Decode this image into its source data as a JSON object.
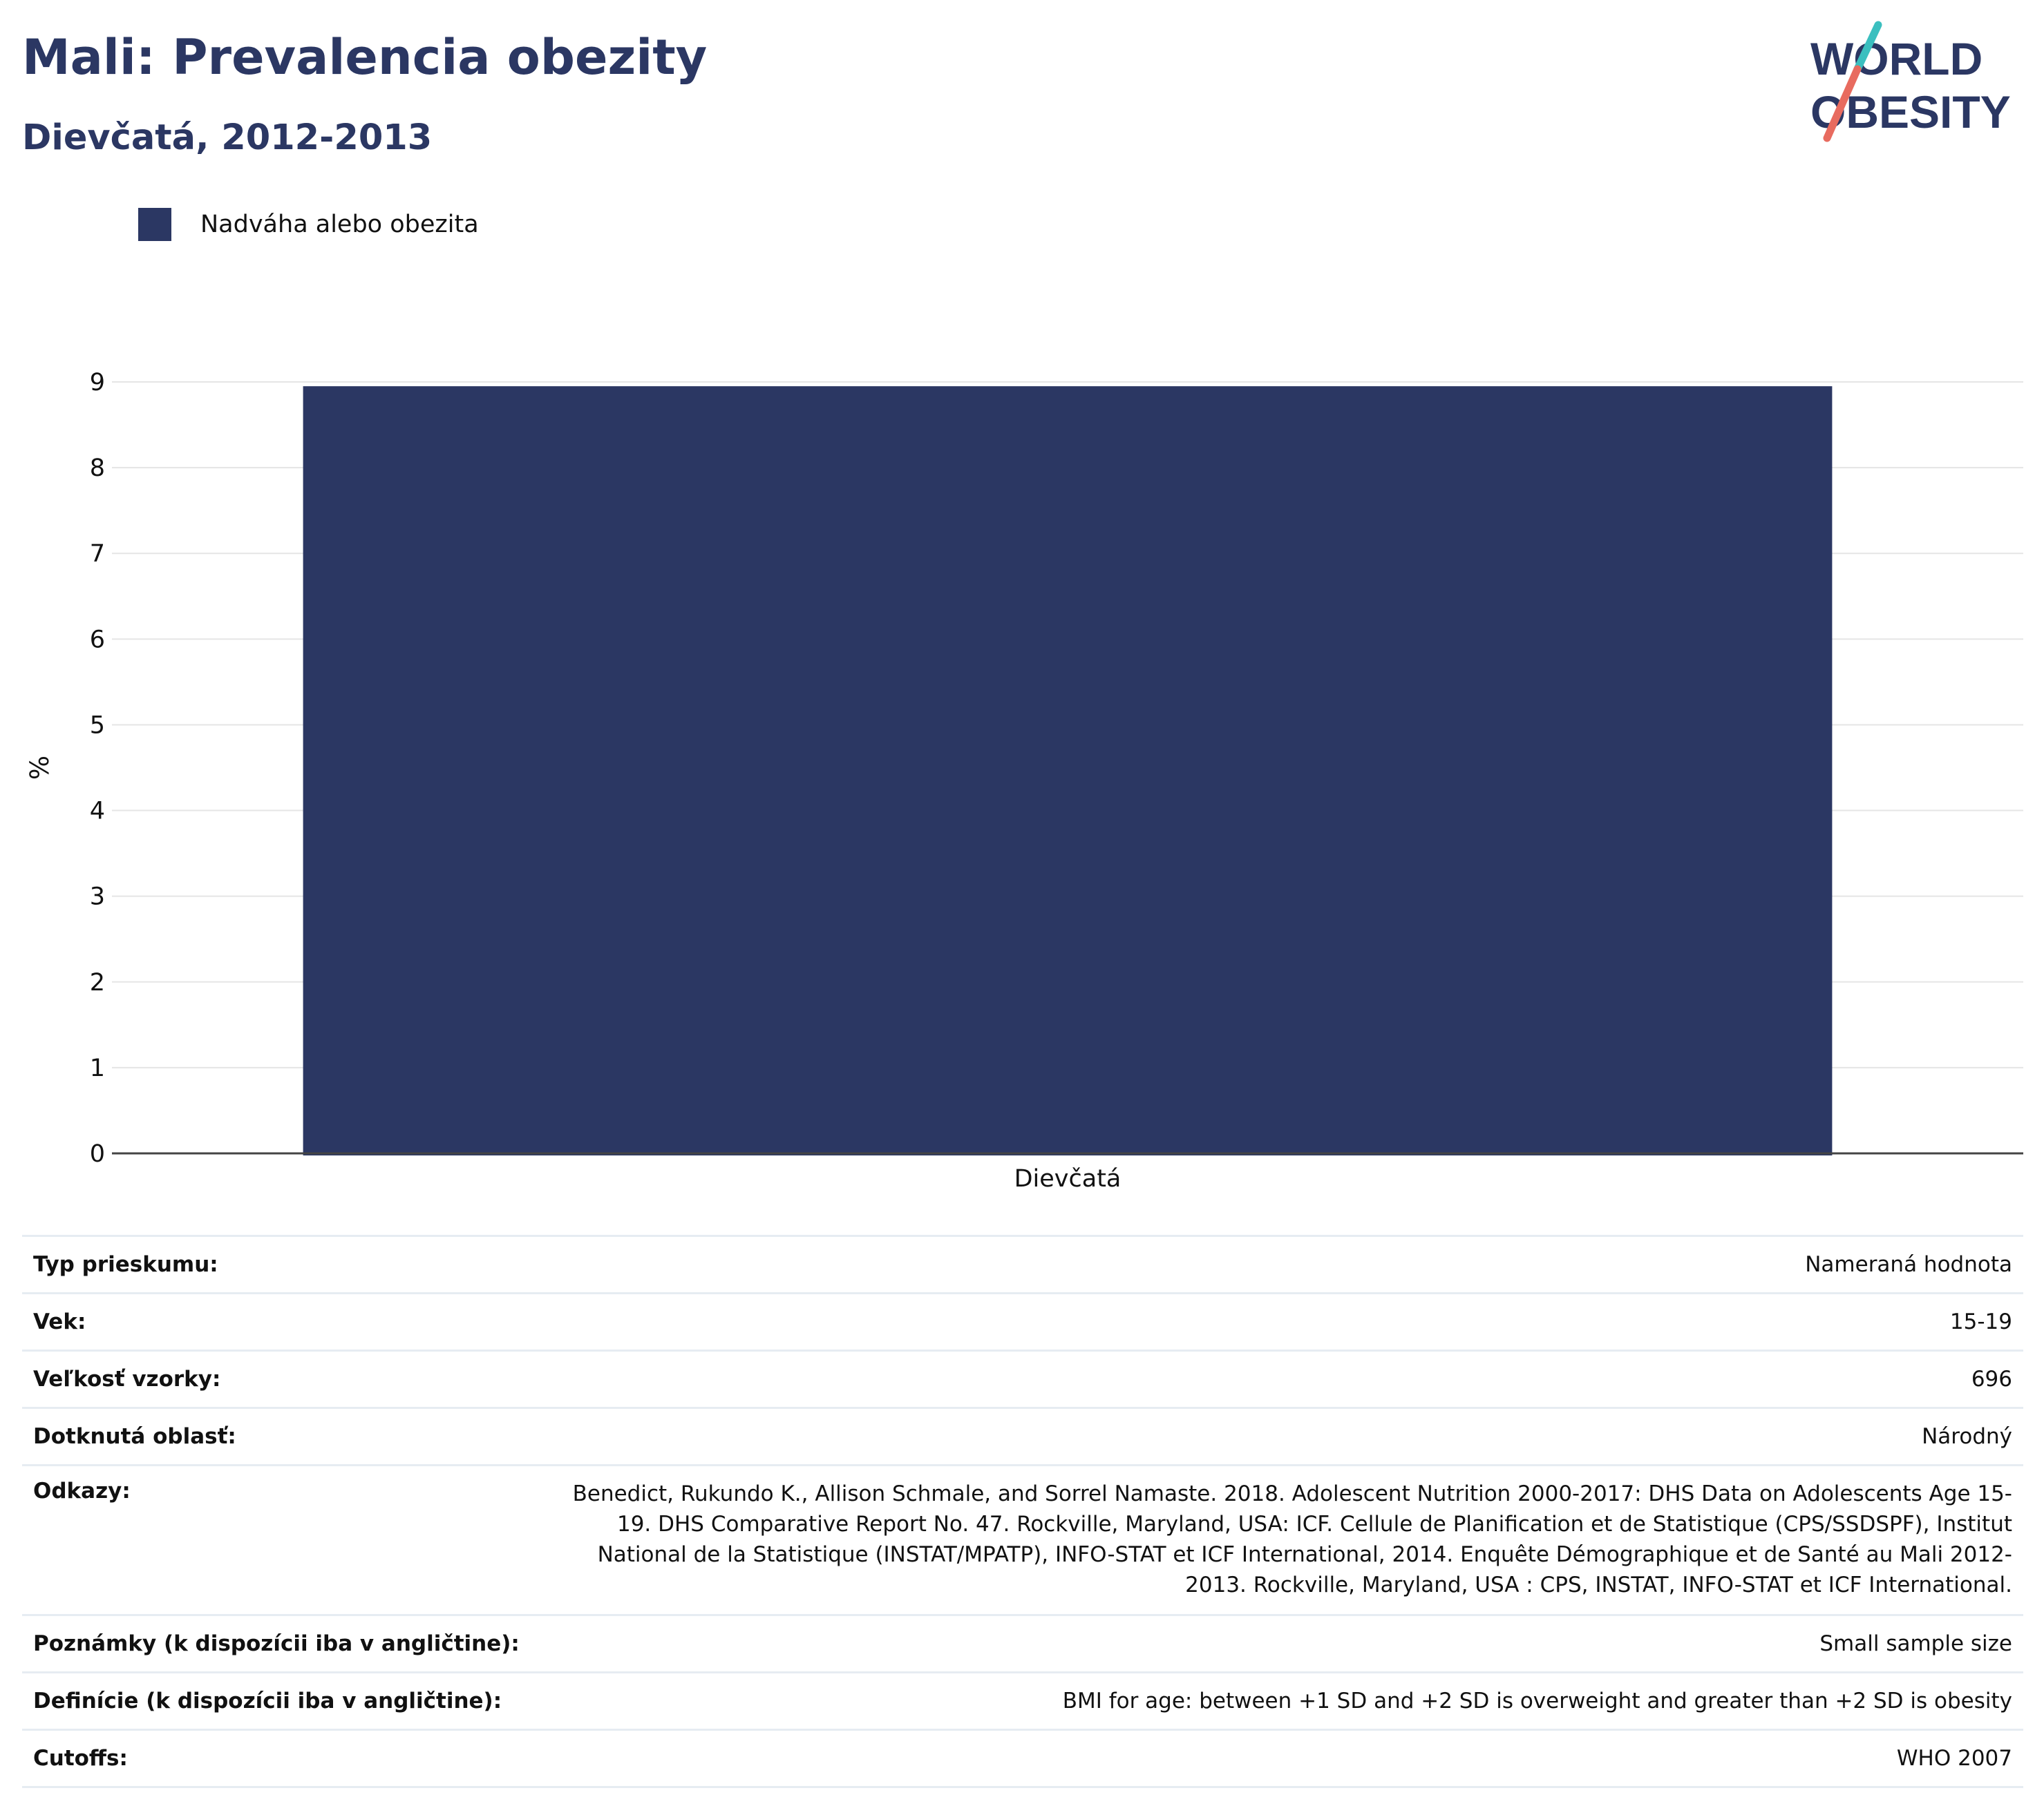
{
  "header": {
    "title": "Mali: Prevalencia obezity",
    "subtitle": "Dievčatá, 2012-2013"
  },
  "logo": {
    "line1": "WORLD",
    "line2": "OBESITY"
  },
  "colors": {
    "bar": "#2b3763",
    "title": "#2b3763",
    "grid": "#e5e5e5",
    "logo_teal": "#3bbfbf",
    "logo_coral": "#e86b5f"
  },
  "chart_data": {
    "type": "bar",
    "categories": [
      "Dievčatá"
    ],
    "series": [
      {
        "name": "Nadváha alebo obezita",
        "values": [
          8.95
        ]
      }
    ],
    "ylabel": "%",
    "xlabel": "",
    "ylim": [
      0,
      9
    ],
    "yticks": [
      0,
      1,
      2,
      3,
      4,
      5,
      6,
      7,
      8,
      9
    ],
    "grid": true,
    "legend": "top-left"
  },
  "info": [
    {
      "key": "Typ prieskumu:",
      "value": "Nameraná hodnota"
    },
    {
      "key": "Vek:",
      "value": "15-19"
    },
    {
      "key": "Veľkosť vzorky:",
      "value": "696"
    },
    {
      "key": "Dotknutá oblasť:",
      "value": "Národný"
    },
    {
      "key": "Odkazy:",
      "value": "Benedict, Rukundo K., Allison Schmale, and Sorrel Namaste. 2018. Adolescent Nutrition 2000-2017: DHS Data on Adolescents Age 15-19. DHS Comparative Report No. 47. Rockville, Maryland, USA: ICF. Cellule de Planification et de Statistique (CPS/SSDSPF), Institut National de la Statistique (INSTAT/MPATP), INFO-STAT et ICF International, 2014. Enquête Démographique et de Santé au Mali 2012-2013. Rockville, Maryland, USA : CPS, INSTAT, INFO-STAT et ICF International."
    },
    {
      "key": "Poznámky (k dispozícii iba v angličtine):",
      "value": "Small sample size"
    },
    {
      "key": "Definície (k dispozícii iba v angličtine):",
      "value": "BMI for age: between +1 SD and +2 SD is overweight and greater than +2 SD is obesity"
    },
    {
      "key": "Cutoffs:",
      "value": "WHO 2007"
    }
  ]
}
